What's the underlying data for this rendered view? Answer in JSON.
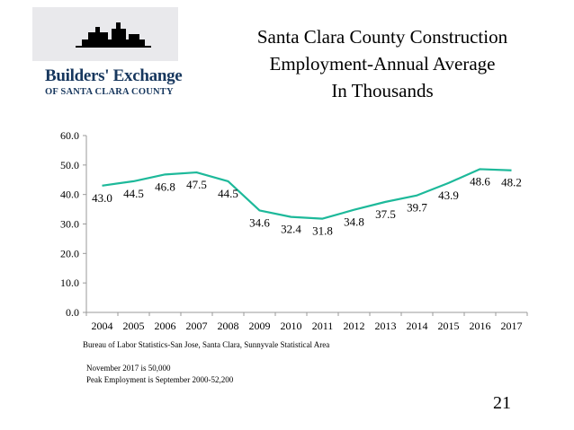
{
  "slide": {
    "title_lines": [
      "Santa Clara County Construction",
      "Employment-Annual Average",
      "In Thousands"
    ],
    "logo": {
      "name": "Builders' Exchange",
      "subtitle": "OF SANTA CLARA COUNTY"
    },
    "source_note": "Bureau of Labor Statistics-San Jose, Santa Clara, Sunnyvale Statistical Area",
    "footnotes": [
      "November 2017 is 50,000",
      "Peak Employment is September 2000-52,200"
    ],
    "page_number": "21"
  },
  "colors": {
    "line": "#1db99a",
    "axis": "#999999",
    "title_text": "#000000",
    "logo_text": "#17375e"
  },
  "chart_data": {
    "type": "line",
    "categories": [
      "2004",
      "2005",
      "2006",
      "2007",
      "2008",
      "2009",
      "2010",
      "2011",
      "2012",
      "2013",
      "2014",
      "2015",
      "2016",
      "2017"
    ],
    "values": [
      43.0,
      44.5,
      46.8,
      47.5,
      44.5,
      34.6,
      32.4,
      31.8,
      34.8,
      37.5,
      39.7,
      43.9,
      48.6,
      48.2
    ],
    "data_labels": [
      "43.0",
      "44.5",
      "46.8",
      "47.5",
      "44.5",
      "34.6",
      "32.4",
      "31.8",
      "34.8",
      "37.5",
      "39.7",
      "43.9",
      "48.6",
      "48.2"
    ],
    "y_ticks": [
      "0.0",
      "10.0",
      "20.0",
      "30.0",
      "40.0",
      "50.0",
      "60.0"
    ],
    "ylim": [
      0,
      60
    ],
    "grid": false,
    "legend": "none"
  }
}
